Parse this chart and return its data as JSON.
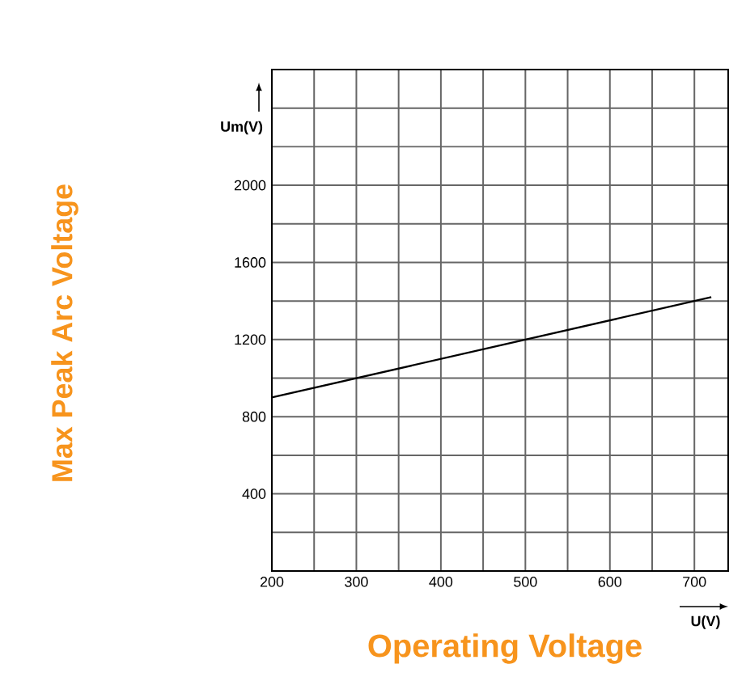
{
  "chart_data": {
    "type": "line",
    "xlabel": "Operating Voltage",
    "annotations": [
      "Um(V)",
      "U(V)",
      "Max Peak Arc Voltage"
    ],
    "x": [
      200,
      720
    ],
    "series": [
      {
        "color": "#000000",
        "values": [
          900,
          1420
        ]
      }
    ],
    "xlim": [
      200,
      740
    ],
    "ylim": [
      0,
      2600
    ],
    "xticks": [
      200,
      {
        "value": 250,
        "label": null
      },
      300,
      {
        "value": 350,
        "label": null
      },
      400,
      {
        "value": 450,
        "label": null
      },
      500,
      {
        "value": 550,
        "label": null
      },
      600,
      {
        "value": 650,
        "label": null
      },
      700
    ],
    "yticks": [
      {
        "value": 200,
        "label": null
      },
      400,
      {
        "value": 600,
        "label": null
      },
      800,
      {
        "value": 1000,
        "label": null
      },
      1200,
      {
        "value": 1400,
        "label": null
      },
      1600,
      {
        "value": 1800,
        "label": null
      },
      2000,
      {
        "value": 2200,
        "label": null
      },
      {
        "value": 2400,
        "label": null
      }
    ],
    "grid": true,
    "marker": "none",
    "line_style": "solid"
  }
}
